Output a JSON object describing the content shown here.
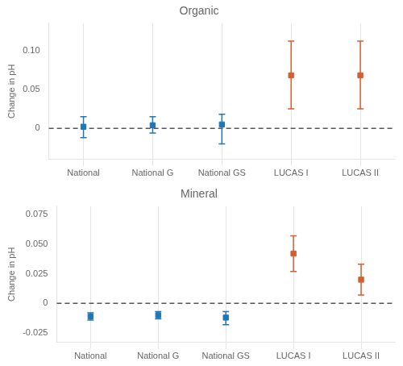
{
  "chart_data": [
    {
      "type": "scatter",
      "title": "Organic",
      "ylabel": "Change in pH",
      "categories": [
        "National",
        "National G",
        "National GS",
        "LUCAS I",
        "LUCAS II"
      ],
      "values": [
        0.002,
        0.004,
        0.005,
        0.068,
        0.068
      ],
      "err_low": [
        0.014,
        0.01,
        0.025,
        0.043,
        0.043
      ],
      "err_high": [
        0.013,
        0.011,
        0.013,
        0.044,
        0.044
      ],
      "colors": [
        "#1f77b4",
        "#1f77b4",
        "#1f77b4",
        "#d45f30",
        "#d45f30"
      ],
      "marker": "square",
      "reference_line": 0,
      "ylim": [
        -0.04,
        0.135
      ],
      "yticks": [
        0,
        0.05,
        {
          "value": 0.1,
          "label": "0.10"
        }
      ],
      "grid": "x"
    },
    {
      "type": "scatter",
      "title": "Mineral",
      "ylabel": "Change in pH",
      "categories": [
        "National",
        "National G",
        "National GS",
        "LUCAS I",
        "LUCAS II"
      ],
      "values": [
        -0.011,
        -0.01,
        -0.012,
        0.042,
        0.02
      ],
      "err_low": [
        0.003,
        0.003,
        0.006,
        0.015,
        0.013
      ],
      "err_high": [
        0.003,
        0.003,
        0.005,
        0.015,
        0.013
      ],
      "colors": [
        "#1f77b4",
        "#1f77b4",
        "#1f77b4",
        "#d45f30",
        "#d45f30"
      ],
      "marker": "square",
      "reference_line": 0,
      "ylim": [
        -0.033,
        0.082
      ],
      "yticks": [
        -0.025,
        0,
        0.025,
        {
          "value": 0.05,
          "label": "0.050"
        },
        0.075
      ],
      "grid": "x"
    }
  ]
}
